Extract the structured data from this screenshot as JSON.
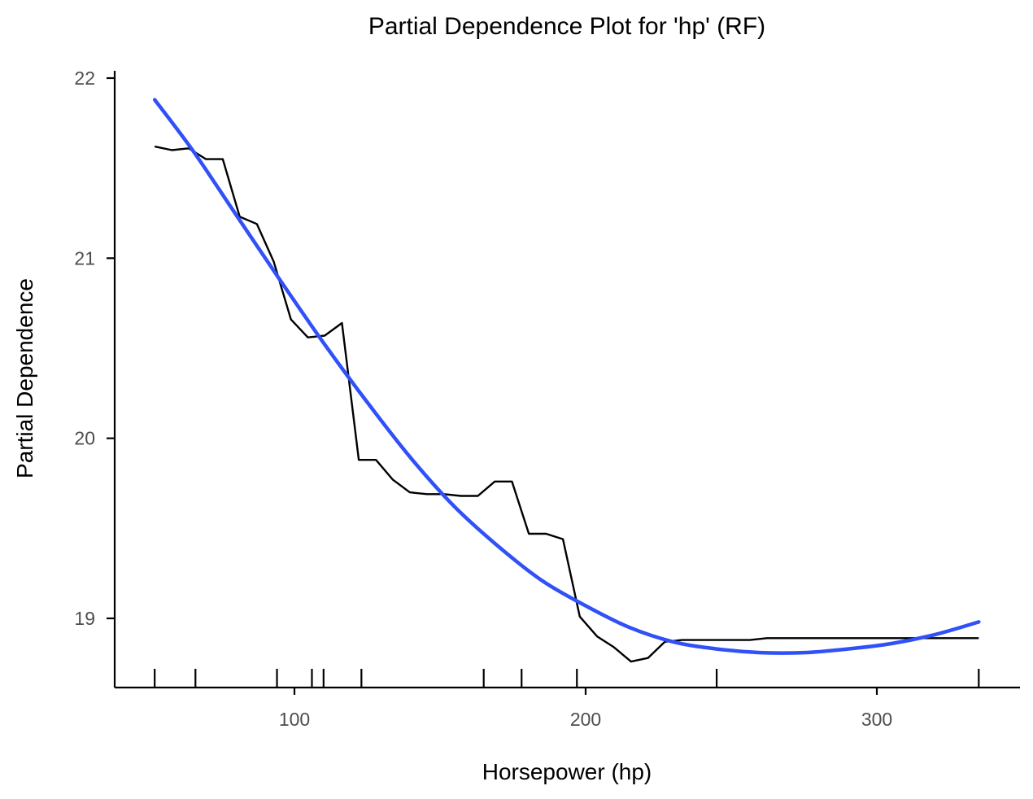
{
  "chart_data": {
    "type": "line",
    "title": "Partial Dependence Plot for 'hp' (RF)",
    "xlabel": "Horsepower (hp)",
    "ylabel": "Partial Dependence",
    "xlim": [
      40,
      350
    ],
    "ylim": [
      18.62,
      22.05
    ],
    "x_ticks": [
      100,
      200,
      300
    ],
    "x_tick_labels": [
      "100",
      "200",
      "300"
    ],
    "y_ticks": [
      19,
      20,
      21,
      22
    ],
    "y_tick_labels": [
      "19",
      "20",
      "21",
      "22"
    ],
    "grid": false,
    "legend": "none",
    "series": [
      {
        "style": "step-line",
        "color": "#000000",
        "points": [
          [
            52,
            21.62
          ],
          [
            57.9,
            21.6
          ],
          [
            63.7,
            21.61
          ],
          [
            69.6,
            21.55
          ],
          [
            75.4,
            21.55
          ],
          [
            81.2,
            21.23
          ],
          [
            87.1,
            21.19
          ],
          [
            92.9,
            20.98
          ],
          [
            98.8,
            20.66
          ],
          [
            104.6,
            20.56
          ],
          [
            110.4,
            20.57
          ],
          [
            116.3,
            20.64
          ],
          [
            122.1,
            19.88
          ],
          [
            128,
            19.88
          ],
          [
            133.8,
            19.77
          ],
          [
            139.6,
            19.7
          ],
          [
            145.5,
            19.69
          ],
          [
            151.3,
            19.69
          ],
          [
            157.2,
            19.68
          ],
          [
            163,
            19.68
          ],
          [
            168.8,
            19.76
          ],
          [
            174.7,
            19.76
          ],
          [
            180.5,
            19.47
          ],
          [
            186.4,
            19.47
          ],
          [
            192.2,
            19.44
          ],
          [
            198,
            19.01
          ],
          [
            203.9,
            18.9
          ],
          [
            209.7,
            18.84
          ],
          [
            215.6,
            18.76
          ],
          [
            221.4,
            18.78
          ],
          [
            227.2,
            18.87
          ],
          [
            233.1,
            18.88
          ],
          [
            238.9,
            18.88
          ],
          [
            244.8,
            18.88
          ],
          [
            250.6,
            18.88
          ],
          [
            256.4,
            18.88
          ],
          [
            262.3,
            18.89
          ],
          [
            268.1,
            18.89
          ],
          [
            274,
            18.89
          ],
          [
            279.8,
            18.89
          ],
          [
            285.6,
            18.89
          ],
          [
            291.5,
            18.89
          ],
          [
            297.3,
            18.89
          ],
          [
            303.2,
            18.89
          ],
          [
            309,
            18.89
          ],
          [
            314.8,
            18.89
          ],
          [
            320.7,
            18.89
          ],
          [
            326.5,
            18.89
          ],
          [
            332.4,
            18.89
          ],
          [
            335,
            18.89
          ]
        ]
      },
      {
        "style": "smooth",
        "color": "#3050F8",
        "points": [
          [
            52,
            21.88
          ],
          [
            65,
            21.6
          ],
          [
            80,
            21.24
          ],
          [
            95,
            20.88
          ],
          [
            110,
            20.53
          ],
          [
            125,
            20.2
          ],
          [
            140,
            19.89
          ],
          [
            155,
            19.62
          ],
          [
            170,
            19.4
          ],
          [
            185,
            19.21
          ],
          [
            200,
            19.07
          ],
          [
            215,
            18.95
          ],
          [
            230,
            18.87
          ],
          [
            245,
            18.83
          ],
          [
            260,
            18.81
          ],
          [
            275,
            18.81
          ],
          [
            290,
            18.83
          ],
          [
            305,
            18.86
          ],
          [
            320,
            18.91
          ],
          [
            335,
            18.98
          ]
        ]
      }
    ],
    "rug": [
      52,
      66,
      94,
      106,
      110,
      123,
      165,
      178,
      197,
      245,
      335
    ]
  }
}
